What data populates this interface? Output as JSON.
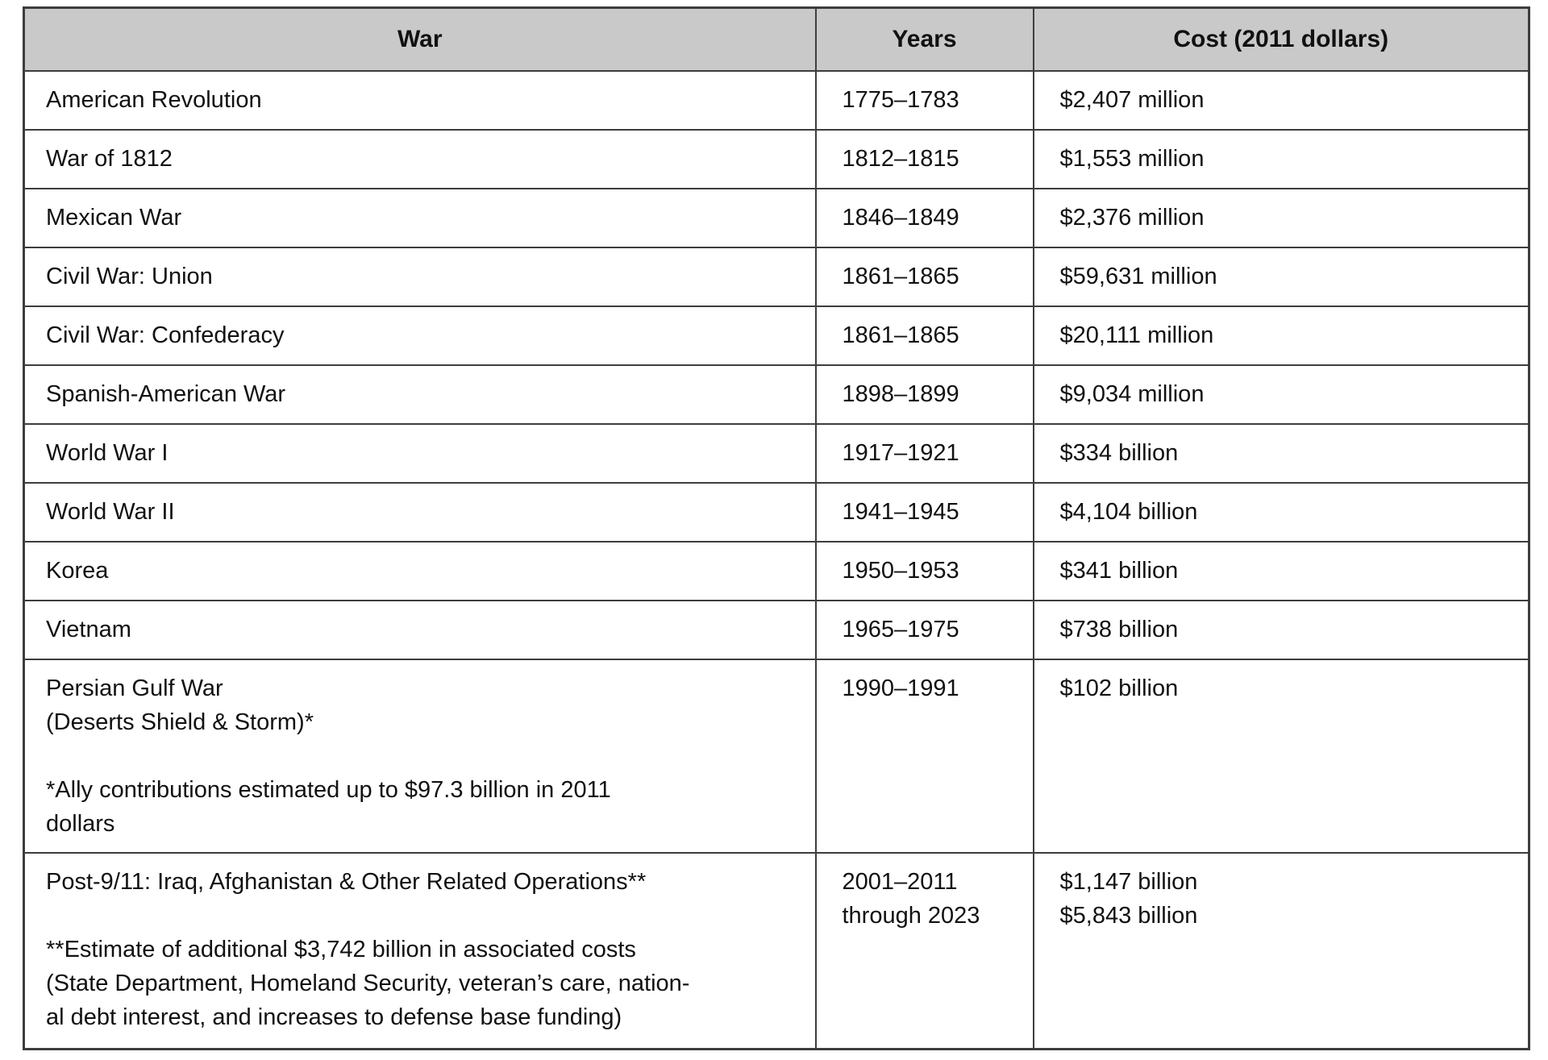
{
  "colors": {
    "header_bg": "#c9c9c9",
    "border": "#3d3d3d",
    "text": "#111111"
  },
  "table": {
    "headers": {
      "war": "War",
      "years": "Years",
      "cost": "Cost (2011 dollars)"
    },
    "rows": [
      {
        "war": "American Revolution",
        "years": "1775–1783",
        "cost": "$2,407 million"
      },
      {
        "war": "War of 1812",
        "years": "1812–1815",
        "cost": "$1,553 million"
      },
      {
        "war": "Mexican War",
        "years": "1846–1849",
        "cost": "$2,376 million"
      },
      {
        "war": "Civil War: Union",
        "years": "1861–1865",
        "cost": "$59,631 million"
      },
      {
        "war": "Civil War: Confederacy",
        "years": "1861–1865",
        "cost": "$20,111 million"
      },
      {
        "war": "Spanish-American War",
        "years": "1898–1899",
        "cost": "$9,034 million"
      },
      {
        "war": "World War I",
        "years": "1917–1921",
        "cost": "$334 billion"
      },
      {
        "war": "World War II",
        "years": "1941–1945",
        "cost": "$4,104 billion"
      },
      {
        "war": "Korea",
        "years": "1950–1953",
        "cost": "$341 billion"
      },
      {
        "war": "Vietnam",
        "years": "1965–1975",
        "cost": "$738 billion"
      },
      {
        "war": "Persian Gulf War\n(Deserts Shield & Storm)*\n\n*Ally contributions estimated up to $97.3 billion in 2011\ndollars",
        "years": "1990–1991",
        "cost": "$102 billion"
      },
      {
        "war": "Post-9/11: Iraq, Afghanistan & Other Related Operations**\n\n**Estimate of additional $3,742 billion in associated costs\n(State Department, Homeland Security, veteran’s care, nation-\nal debt interest, and increases to defense base funding)",
        "years": "2001–2011\nthrough 2023",
        "cost": "$1,147 billion\n$5,843 billion"
      }
    ]
  }
}
